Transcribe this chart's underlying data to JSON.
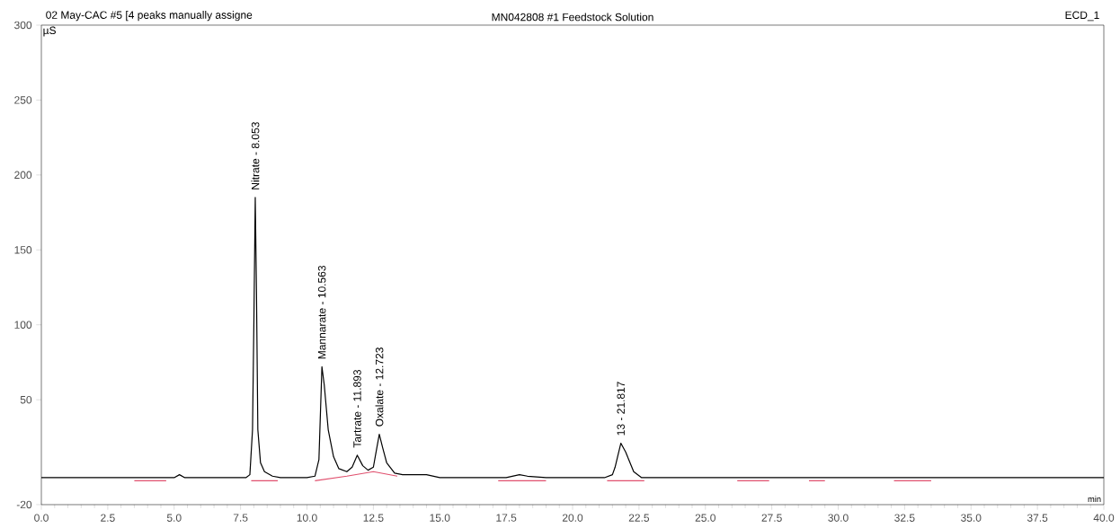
{
  "chart_data": {
    "type": "line",
    "title": "MN042808 #1 Feedstock Solution",
    "xlabel": "min",
    "ylabel": "µS",
    "annotations": [
      "02 May-CAC #5 [4 peaks manually assigne",
      "ECD_1",
      {
        "text": "Nitrate - 8.053",
        "x": 8.053,
        "y": 185
      },
      {
        "text": "Mannarate - 10.563",
        "x": 10.563,
        "y": 72
      },
      {
        "text": "Tartrate - 11.893",
        "x": 11.893,
        "y": 13
      },
      {
        "text": "Oxalate - 12.723",
        "x": 12.723,
        "y": 27
      },
      {
        "text": "13 - 21.817",
        "x": 21.817,
        "y": 21
      }
    ],
    "xlim": [
      0,
      40
    ],
    "ylim": [
      -20,
      300
    ],
    "xticks": [
      {
        "value": 0,
        "label": "0.0"
      },
      {
        "value": 2.5,
        "label": "2.5"
      },
      {
        "value": 5,
        "label": "5.0"
      },
      {
        "value": 7.5,
        "label": "7.5"
      },
      {
        "value": 10,
        "label": "10.0"
      },
      {
        "value": 12.5,
        "label": "12.5"
      },
      {
        "value": 15,
        "label": "15.0"
      },
      {
        "value": 17.5,
        "label": "17.5"
      },
      {
        "value": 20,
        "label": "20.0"
      },
      {
        "value": 22.5,
        "label": "22.5"
      },
      {
        "value": 25,
        "label": "25.0"
      },
      {
        "value": 27.5,
        "label": "27.5"
      },
      {
        "value": 30,
        "label": "30.0"
      },
      {
        "value": 32.5,
        "label": "32.5"
      },
      {
        "value": 35,
        "label": "35.0"
      },
      {
        "value": 37.5,
        "label": "37.5"
      },
      {
        "value": 40,
        "label": "40.0"
      }
    ],
    "yticks": [
      -20,
      50,
      100,
      150,
      200,
      250,
      300
    ],
    "series": [
      {
        "color": "#000000",
        "x": [
          0,
          3.5,
          5.0,
          5.2,
          5.4,
          7.7,
          7.85,
          7.95,
          8.0,
          8.053,
          8.1,
          8.15,
          8.25,
          8.4,
          8.7,
          9.0,
          10.0,
          10.3,
          10.45,
          10.563,
          10.65,
          10.8,
          11.0,
          11.2,
          11.5,
          11.7,
          11.893,
          12.1,
          12.3,
          12.5,
          12.6,
          12.723,
          12.85,
          13.0,
          13.3,
          13.6,
          14.5,
          15.0,
          17.5,
          18.0,
          18.3,
          19.0,
          21.2,
          21.5,
          21.6,
          21.817,
          22.0,
          22.3,
          22.6,
          40
        ],
        "values": [
          -2,
          -2,
          -2,
          0,
          -2,
          -2,
          0,
          30,
          100,
          185,
          120,
          30,
          8,
          2,
          -1,
          -2,
          -2,
          -1,
          10,
          72,
          60,
          30,
          12,
          4,
          2,
          5,
          13,
          6,
          3,
          5,
          15,
          27,
          18,
          8,
          1,
          0,
          0,
          -2,
          -2,
          0,
          -1,
          -2,
          -2,
          0,
          5,
          21,
          15,
          2,
          -2,
          -2
        ]
      },
      {
        "color": "#e0506e",
        "x": [
          3.5,
          4.7,
          4.8,
          7.9,
          8.9,
          9.0,
          10.3,
          11.5,
          12.5,
          13.4,
          13.5,
          17.2,
          19.0,
          19.1,
          21.3,
          22.7,
          22.8,
          26.2,
          27.4,
          27.5,
          28.9,
          29.5,
          29.6,
          32.1,
          33.5
        ],
        "values": [
          -4,
          -4,
          null,
          -4,
          -4,
          null,
          -4,
          -1,
          2,
          -1,
          null,
          -4,
          -4,
          null,
          -4,
          -4,
          null,
          -4,
          -4,
          null,
          -4,
          -4,
          null,
          -4,
          -4
        ]
      }
    ]
  }
}
